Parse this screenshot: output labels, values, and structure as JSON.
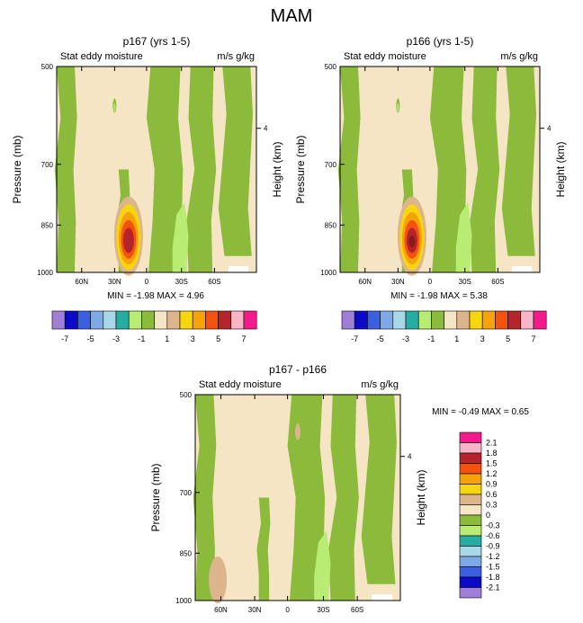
{
  "page_title": "MAM",
  "palette": {
    "neg7": "#9f7fd8",
    "neg6": "#0a0ac8",
    "neg5": "#3a5fe0",
    "neg4": "#7fa8e6",
    "neg3": "#a8d8e8",
    "neg2": "#27aca4",
    "neg1": "#b9ec72",
    "neg0": "#8cba3a",
    "pos0": "#f5e5c4",
    "pos1": "#dcb58c",
    "pos2": "#f7d610",
    "pos3": "#f6a20a",
    "pos4": "#f5520e",
    "pos5": "#b5242a",
    "pos6": "#f7b5c7",
    "pos7": "#f21a8c"
  },
  "chart_data": [
    {
      "type": "heatmap",
      "id": "p167",
      "title": "p167 (yrs 1-5)",
      "left_label": "Stat eddy moisture",
      "right_label": "m/s g/kg",
      "ylabel": "Pressure (mb)",
      "ylabel_right": "Height (km)",
      "yticks": [
        "500",
        "700",
        "850",
        "1000"
      ],
      "yticks_right": [
        "4"
      ],
      "xticks": [
        "60N",
        "30N",
        "0",
        "30S",
        "60S"
      ],
      "stats": "MIN =  -1.98   MAX =   4.96",
      "min": -1.98,
      "max": 4.96,
      "peak_levels": 5
    },
    {
      "type": "heatmap",
      "id": "p166",
      "title": "p166 (yrs 1-5)",
      "left_label": "Stat eddy moisture",
      "right_label": "m/s g/kg",
      "ylabel": "Pressure (mb)",
      "ylabel_right": "Height (km)",
      "yticks": [
        "500",
        "700",
        "850",
        "1000"
      ],
      "yticks_right": [
        "4"
      ],
      "xticks": [
        "60N",
        "30N",
        "0",
        "30S",
        "60S"
      ],
      "stats": "MIN =  -1.98   MAX =   5.38",
      "min": -1.98,
      "max": 5.38,
      "peak_levels": 6
    },
    {
      "type": "heatmap",
      "id": "diff",
      "title": "p167 - p166",
      "left_label": "Stat eddy moisture",
      "right_label": "m/s g/kg",
      "ylabel": "Pressure (mb)",
      "ylabel_right": "Height (km)",
      "yticks": [
        "500",
        "700",
        "850",
        "1000"
      ],
      "yticks_right": [
        "4"
      ],
      "xticks": [
        "60N",
        "30N",
        "0",
        "30S",
        "60S"
      ],
      "stats": "MIN =  -0.49   MAX =    0.65",
      "min": -0.49,
      "max": 0.65
    }
  ],
  "top_colorbar": {
    "labels": [
      "-7",
      "-5",
      "-3",
      "-1",
      "1",
      "3",
      "5",
      "7"
    ],
    "colors": [
      "#9f7fd8",
      "#0a0ac8",
      "#3a5fe0",
      "#7fa8e6",
      "#a8d8e8",
      "#27aca4",
      "#b9ec72",
      "#8cba3a",
      "#f5e5c4",
      "#dcb58c",
      "#f7d610",
      "#f6a20a",
      "#f5520e",
      "#b5242a",
      "#f7b5c7",
      "#f21a8c"
    ]
  },
  "diff_colorbar": {
    "labels": [
      "2.1",
      "1.8",
      "1.5",
      "1.2",
      "0.9",
      "0.6",
      "0.3",
      "0",
      "-0.3",
      "-0.6",
      "-0.9",
      "-1.2",
      "-1.5",
      "-1.8",
      "-2.1"
    ],
    "colors": [
      "#f21a8c",
      "#f7b5c7",
      "#b5242a",
      "#f5520e",
      "#f6a20a",
      "#f7d610",
      "#dcb58c",
      "#f5e5c4",
      "#8cba3a",
      "#b9ec72",
      "#27aca4",
      "#a8d8e8",
      "#7fa8e6",
      "#3a5fe0",
      "#0a0ac8",
      "#9f7fd8"
    ]
  }
}
